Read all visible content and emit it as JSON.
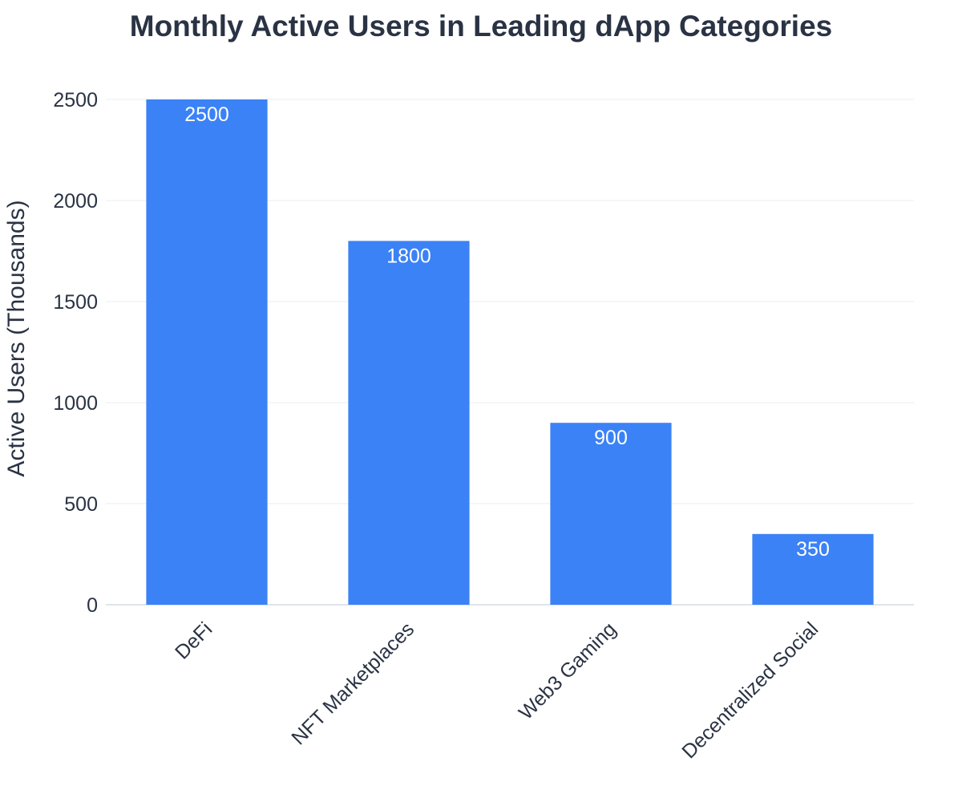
{
  "chart_data": {
    "type": "bar",
    "title": "Monthly Active Users in Leading dApp Categories",
    "xlabel": "",
    "ylabel": "Active Users (Thousands)",
    "categories": [
      "DeFi",
      "NFT Marketplaces",
      "Web3 Gaming",
      "Decentralized Social"
    ],
    "values": [
      2500,
      1800,
      900,
      350
    ],
    "data_labels": [
      "2500",
      "1800",
      "900",
      "350"
    ],
    "ylim": [
      0,
      2500
    ],
    "yticks": [
      0,
      500,
      1000,
      1500,
      2000,
      2500
    ],
    "ytick_labels": [
      "0",
      "500",
      "1000",
      "1500",
      "2000",
      "2500"
    ],
    "grid": true,
    "legend": "none",
    "bar_color": "#3b82f6"
  }
}
